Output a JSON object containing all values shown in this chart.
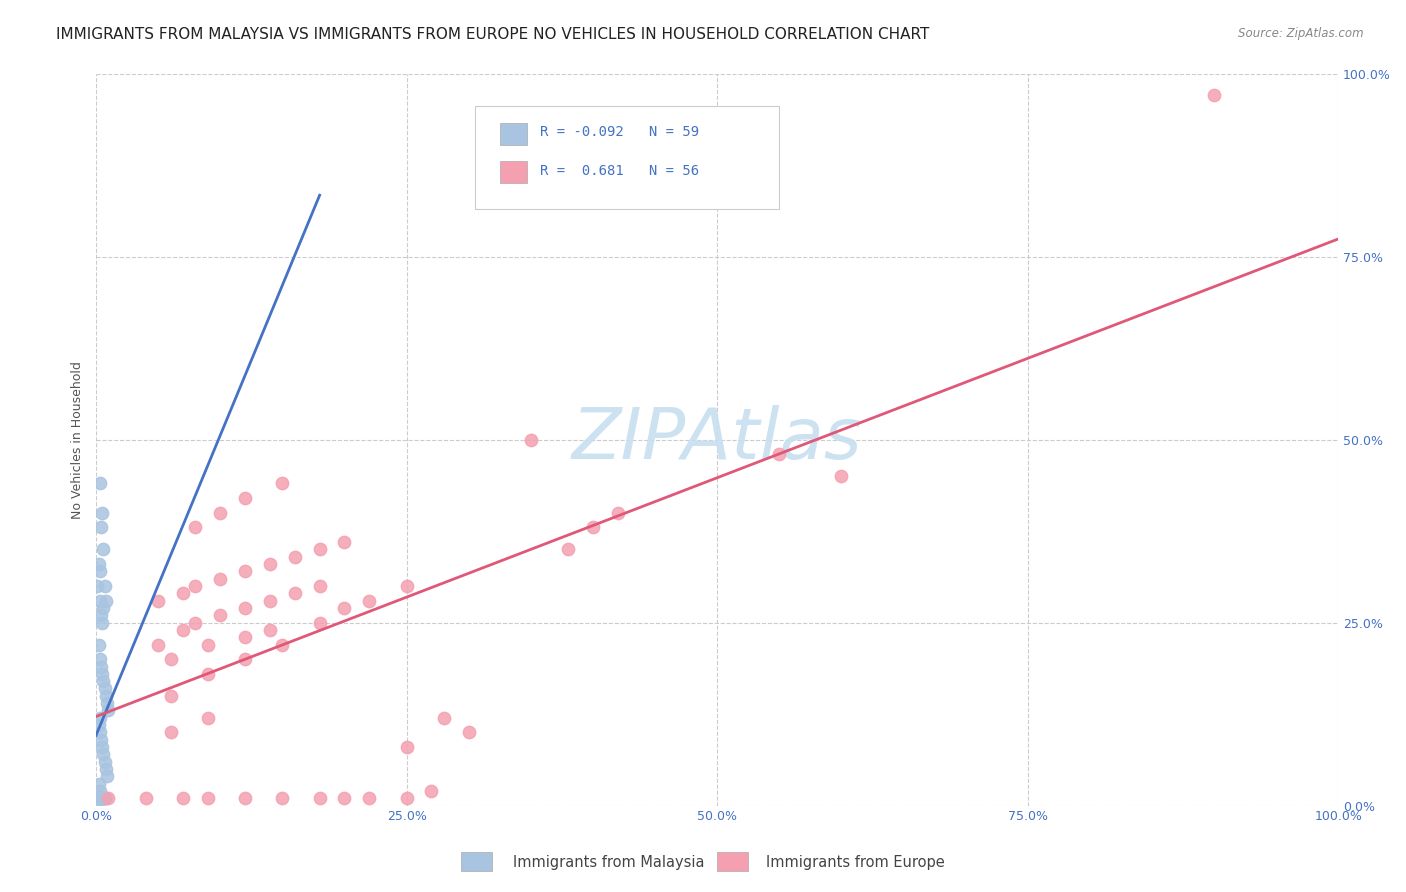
{
  "title": "IMMIGRANTS FROM MALAYSIA VS IMMIGRANTS FROM EUROPE NO VEHICLES IN HOUSEHOLD CORRELATION CHART",
  "source": "Source: ZipAtlas.com",
  "ylabel": "No Vehicles in Household",
  "legend1_label": "Immigrants from Malaysia",
  "legend2_label": "Immigrants from Europe",
  "r1": -0.092,
  "n1": 59,
  "r2": 0.681,
  "n2": 56,
  "color_malaysia": "#a8c4e0",
  "color_europe": "#f4a0b0",
  "color_malaysia_line": "#4472c4",
  "color_europe_line": "#e05878",
  "color_axis_labels": "#4472c4",
  "xlim": [
    0.0,
    1.0
  ],
  "ylim": [
    0.0,
    1.0
  ],
  "ytick_labels": [
    "0.0%",
    "25.0%",
    "50.0%",
    "75.0%",
    "100.0%"
  ],
  "ytick_values": [
    0.0,
    0.25,
    0.5,
    0.75,
    1.0
  ],
  "xtick_labels": [
    "0.0%",
    "25.0%",
    "50.0%",
    "75.0%",
    "100.0%"
  ],
  "xtick_values": [
    0.0,
    0.25,
    0.5,
    0.75,
    1.0
  ],
  "malaysia_x": [
    0.003,
    0.004,
    0.005,
    0.006,
    0.007,
    0.008,
    0.003,
    0.004,
    0.005,
    0.006,
    0.002,
    0.003,
    0.004,
    0.005,
    0.006,
    0.007,
    0.008,
    0.009,
    0.01,
    0.003,
    0.002,
    0.003,
    0.004,
    0.005,
    0.006,
    0.007,
    0.008,
    0.009,
    0.002,
    0.003,
    0.001,
    0.002,
    0.003,
    0.004,
    0.005,
    0.006,
    0.007,
    0.003,
    0.002,
    0.001,
    0.002,
    0.003,
    0.004,
    0.005,
    0.006,
    0.007,
    0.003,
    0.002,
    0.001,
    0.002,
    0.003,
    0.004,
    0.005,
    0.006,
    0.007,
    0.003,
    0.001,
    0.002,
    0.003
  ],
  "malaysia_y": [
    0.44,
    0.38,
    0.4,
    0.35,
    0.3,
    0.28,
    0.32,
    0.26,
    0.25,
    0.27,
    0.22,
    0.2,
    0.19,
    0.18,
    0.17,
    0.16,
    0.15,
    0.14,
    0.13,
    0.12,
    0.11,
    0.1,
    0.09,
    0.08,
    0.07,
    0.06,
    0.05,
    0.04,
    0.03,
    0.02,
    0.01,
    0.01,
    0.01,
    0.01,
    0.01,
    0.01,
    0.01,
    0.01,
    0.01,
    0.01,
    0.01,
    0.01,
    0.01,
    0.01,
    0.01,
    0.01,
    0.01,
    0.01,
    0.01,
    0.01,
    0.01,
    0.01,
    0.01,
    0.01,
    0.01,
    0.01,
    0.3,
    0.33,
    0.28
  ],
  "europe_x": [
    0.01,
    0.09,
    0.04,
    0.07,
    0.12,
    0.15,
    0.18,
    0.2,
    0.22,
    0.25,
    0.27,
    0.06,
    0.09,
    0.12,
    0.15,
    0.18,
    0.2,
    0.22,
    0.25,
    0.06,
    0.09,
    0.05,
    0.07,
    0.08,
    0.1,
    0.12,
    0.14,
    0.16,
    0.18,
    0.06,
    0.09,
    0.12,
    0.14,
    0.05,
    0.07,
    0.08,
    0.1,
    0.12,
    0.14,
    0.16,
    0.18,
    0.2,
    0.55,
    0.6,
    0.38,
    0.4,
    0.42,
    0.3,
    0.25,
    0.28,
    0.08,
    0.1,
    0.12,
    0.15,
    0.9,
    0.35
  ],
  "europe_y": [
    0.01,
    0.01,
    0.01,
    0.01,
    0.01,
    0.01,
    0.01,
    0.01,
    0.01,
    0.01,
    0.02,
    0.15,
    0.18,
    0.2,
    0.22,
    0.25,
    0.27,
    0.28,
    0.3,
    0.1,
    0.12,
    0.22,
    0.24,
    0.25,
    0.26,
    0.27,
    0.28,
    0.29,
    0.3,
    0.2,
    0.22,
    0.23,
    0.24,
    0.28,
    0.29,
    0.3,
    0.31,
    0.32,
    0.33,
    0.34,
    0.35,
    0.36,
    0.48,
    0.45,
    0.35,
    0.38,
    0.4,
    0.1,
    0.08,
    0.12,
    0.38,
    0.4,
    0.42,
    0.44,
    0.97,
    0.5
  ],
  "malaysia_marker_size": 80,
  "europe_marker_size": 80,
  "background_color": "#ffffff",
  "grid_color": "#cccccc",
  "title_fontsize": 11,
  "axis_label_fontsize": 9,
  "tick_fontsize": 9,
  "legend_fontsize": 10
}
